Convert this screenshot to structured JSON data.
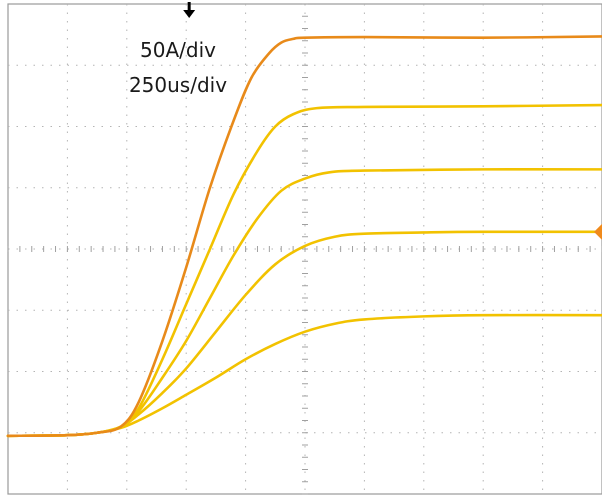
{
  "chart_data": {
    "type": "line",
    "annotations": [
      "50A/div",
      "250us/div"
    ],
    "x_divisions": 10,
    "y_divisions": 8,
    "grid": true,
    "xlim": [
      0,
      10
    ],
    "ylim": [
      0,
      8
    ],
    "trigger_position_div": 3.05,
    "series": [
      {
        "color": "#e88a1a",
        "x": [
          0,
          1.0,
          1.5,
          1.9,
          2.2,
          2.6,
          3.0,
          3.4,
          3.8,
          4.1,
          4.4,
          4.6,
          4.8,
          5.0,
          6.0,
          8.0,
          10.0
        ],
        "y": [
          0.95,
          0.96,
          1.0,
          1.1,
          1.5,
          2.5,
          3.7,
          5.0,
          6.1,
          6.8,
          7.2,
          7.37,
          7.43,
          7.45,
          7.46,
          7.45,
          7.47
        ]
      },
      {
        "color": "#f2c200",
        "x": [
          0,
          1.0,
          1.5,
          1.9,
          2.2,
          2.6,
          3.0,
          3.4,
          3.8,
          4.2,
          4.5,
          4.8,
          5.2,
          6.0,
          8.0,
          10.0
        ],
        "y": [
          0.95,
          0.96,
          1.0,
          1.1,
          1.4,
          2.2,
          3.1,
          4.0,
          4.9,
          5.6,
          6.0,
          6.2,
          6.3,
          6.32,
          6.33,
          6.35
        ]
      },
      {
        "color": "#f2c200",
        "x": [
          0,
          1.0,
          1.5,
          1.9,
          2.2,
          2.6,
          3.0,
          3.4,
          3.8,
          4.2,
          4.6,
          5.0,
          5.4,
          6.0,
          8.0,
          10.0
        ],
        "y": [
          0.95,
          0.96,
          1.0,
          1.1,
          1.35,
          1.9,
          2.5,
          3.2,
          3.9,
          4.5,
          4.95,
          5.15,
          5.25,
          5.28,
          5.3,
          5.3
        ]
      },
      {
        "color": "#f2c200",
        "x": [
          0,
          1.0,
          1.5,
          1.9,
          2.2,
          2.6,
          3.0,
          3.5,
          4.0,
          4.5,
          5.0,
          5.5,
          6.0,
          7.0,
          8.0,
          10.0
        ],
        "y": [
          0.95,
          0.96,
          1.0,
          1.1,
          1.3,
          1.65,
          2.05,
          2.65,
          3.25,
          3.75,
          4.05,
          4.2,
          4.25,
          4.27,
          4.28,
          4.28
        ]
      },
      {
        "color": "#f2c200",
        "x": [
          0,
          1.0,
          1.5,
          1.9,
          2.2,
          2.6,
          3.0,
          3.5,
          4.0,
          4.5,
          5.0,
          5.5,
          6.0,
          7.0,
          8.0,
          10.0
        ],
        "y": [
          0.95,
          0.96,
          1.0,
          1.08,
          1.2,
          1.4,
          1.62,
          1.9,
          2.2,
          2.45,
          2.65,
          2.78,
          2.85,
          2.9,
          2.92,
          2.92
        ]
      }
    ]
  }
}
